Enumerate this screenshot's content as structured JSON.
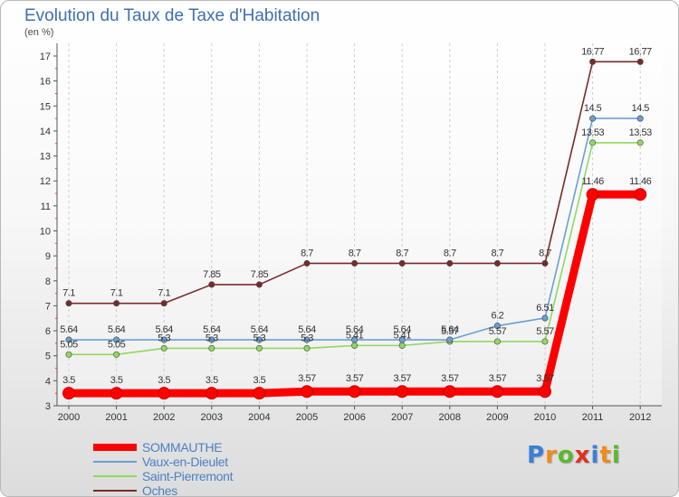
{
  "chart_data": {
    "type": "line",
    "title": "Evolution du Taux de Taxe d'Habitation",
    "subtitle": "(en %)",
    "x": [
      "2000",
      "2001",
      "2002",
      "2003",
      "2004",
      "2005",
      "2006",
      "2007",
      "2008",
      "2009",
      "2010",
      "2011",
      "2012"
    ],
    "ylim": [
      3,
      17
    ],
    "yticks": [
      "3",
      "4",
      "5",
      "6",
      "7",
      "8",
      "9",
      "10",
      "11",
      "12",
      "13",
      "14",
      "15",
      "16",
      "17"
    ],
    "grid": "vertical dashed",
    "legend_position": "bottom-left",
    "series": [
      {
        "name": "SOMMAUTHE",
        "color": "#ff0000",
        "values": [
          3.5,
          3.5,
          3.5,
          3.5,
          3.5,
          3.57,
          3.57,
          3.57,
          3.57,
          3.57,
          3.57,
          11.46,
          11.46
        ],
        "labels": [
          "3.5",
          "3.5",
          "3.5",
          "3.5",
          "3.5",
          "3.57",
          "3.57",
          "3.57",
          "3.57",
          "3.57",
          "3.57",
          "11.46",
          "11.46"
        ]
      },
      {
        "name": "Vaux-en-Dieulet",
        "color": "#6a9fd4",
        "values": [
          5.64,
          5.64,
          5.64,
          5.64,
          5.64,
          5.64,
          5.64,
          5.64,
          5.64,
          6.2,
          6.51,
          14.5,
          14.5
        ],
        "labels": [
          "5.64",
          "5.64",
          "5.64",
          "5.64",
          "5.64",
          "5.64",
          "5.64",
          "5.64",
          "5.64",
          "6.2",
          "6.51",
          "14.5",
          "14.5"
        ]
      },
      {
        "name": "Saint-Pierremont",
        "color": "#90d860",
        "values": [
          5.05,
          5.05,
          5.3,
          5.3,
          5.3,
          5.3,
          5.41,
          5.41,
          5.57,
          5.57,
          5.57,
          13.53,
          13.53
        ],
        "labels": [
          "5.05",
          "5.05",
          "5.3",
          "5.3",
          "5.3",
          "5.3",
          "5.41",
          "5.41",
          "5.57",
          "5.57",
          "5.57",
          "13.53",
          "13.53"
        ]
      },
      {
        "name": "Oches",
        "color": "#7a2a2a",
        "values": [
          7.1,
          7.1,
          7.1,
          7.85,
          7.85,
          8.7,
          8.7,
          8.7,
          8.7,
          8.7,
          8.7,
          16.77,
          16.77
        ],
        "labels": [
          "7.1",
          "7.1",
          "7.1",
          "7.85",
          "7.85",
          "8.7",
          "8.7",
          "8.7",
          "8.7",
          "8.7",
          "8.7",
          "16.77",
          "16.77"
        ]
      }
    ]
  },
  "brand": {
    "letters": [
      "P",
      "r",
      "o",
      "x",
      "i",
      "t",
      "i"
    ],
    "colors": [
      "#3a7fd8",
      "#f08a1c",
      "#5cb82e",
      "#e0301e",
      "#3a7fd8",
      "#f08a1c",
      "#5cb82e"
    ]
  }
}
